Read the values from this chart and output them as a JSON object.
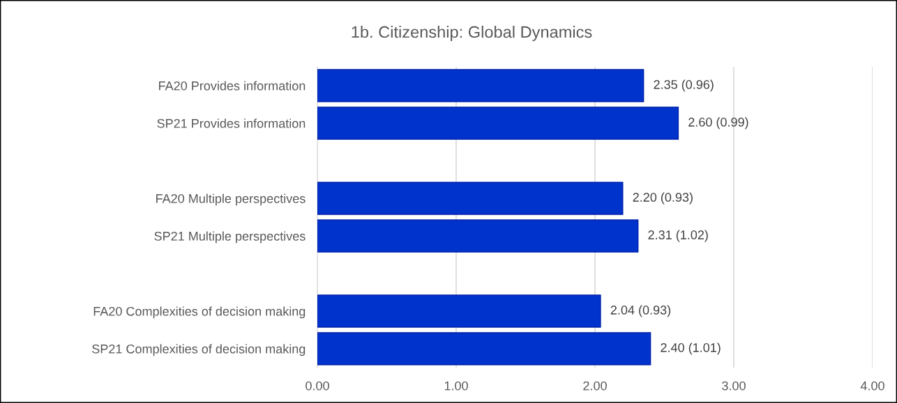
{
  "chart_data": {
    "type": "bar",
    "orientation": "horizontal",
    "title": "1b. Citizenship: Global Dynamics",
    "categories": [
      "FA20 Provides information",
      "SP21 Provides information",
      null,
      "FA20 Multiple perspectives",
      "SP21 Multiple perspectives",
      null,
      "FA20 Complexities of decision making",
      "SP21 Complexities of decision making"
    ],
    "values": [
      2.35,
      2.6,
      null,
      2.2,
      2.31,
      null,
      2.04,
      2.4
    ],
    "value_labels": [
      "2.35 (0.96)",
      "2.60 (0.99)",
      null,
      "2.20 (0.93)",
      "2.31 (1.02)",
      null,
      "2.04 (0.93)",
      "2.40 (1.01)"
    ],
    "color": "#0033cc",
    "xlim": [
      0,
      4
    ],
    "xticks": [
      {
        "value": 0,
        "label": "0.00"
      },
      {
        "value": 1,
        "label": "1.00"
      },
      {
        "value": 2,
        "label": "2.00"
      },
      {
        "value": 3,
        "label": "3.00"
      },
      {
        "value": 4,
        "label": "4.00"
      }
    ],
    "grid": "x"
  }
}
